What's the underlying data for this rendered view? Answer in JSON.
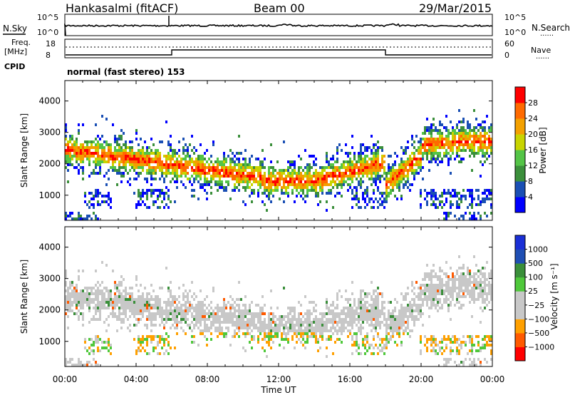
{
  "header": {
    "station": "Hankasalmi (fitACF)",
    "beam": "Beam 00",
    "date": "29/Mar/2015"
  },
  "panel_labels": {
    "nsky": "N.Sky",
    "nsearch": "N.Search",
    "freq": "Freq.",
    "freq_unit": "[MHz]",
    "cpid": "CPID",
    "nave": "Nave",
    "dots": "......",
    "mode": "normal (fast stereo) 153"
  },
  "noise_ticks": {
    "left": [
      "10^5",
      "10^0"
    ],
    "right": [
      "10^5",
      "10^0"
    ]
  },
  "freq_ticks": {
    "left": [
      "18",
      "8"
    ],
    "right": [
      "60",
      "0"
    ]
  },
  "colors": {
    "power": [
      "#0000ff",
      "#1a4fb4",
      "#3b8f3b",
      "#54c447",
      "#c8d400",
      "#f3a000",
      "#ff6a00",
      "#ff0000"
    ],
    "velocity": [
      "#ff0000",
      "#ff5a00",
      "#ffa000",
      "#c8c8c8",
      "#c8c8c8",
      "#4fc83b",
      "#3a8f3a",
      "#1f4fb4",
      "#1a2fd6"
    ]
  },
  "chart_data": [
    {
      "type": "heatmap",
      "ylabel": "Slant Range [km]",
      "xlabel": "Time UT",
      "x_ticks": [
        "00:00",
        "04:00",
        "08:00",
        "12:00",
        "16:00",
        "20:00",
        "00:00"
      ],
      "y_ticks": [
        1000,
        2000,
        3000,
        4000
      ],
      "ylim": [
        200,
        4650
      ],
      "colorbar": {
        "label": "Power [dB]",
        "ticks": [
          4,
          8,
          12,
          16,
          20,
          24,
          28
        ],
        "range": [
          0,
          32
        ]
      }
    },
    {
      "type": "heatmap",
      "ylabel": "Slant Range [km]",
      "xlabel": "Time UT",
      "x_ticks": [
        "00:00",
        "04:00",
        "08:00",
        "12:00",
        "16:00",
        "20:00",
        "00:00"
      ],
      "y_ticks": [
        1000,
        2000,
        3000,
        4000
      ],
      "ylim": [
        200,
        4650
      ],
      "colorbar": {
        "label": "Velocity [m s⁻¹]",
        "ticks": [
          "1000",
          "500",
          "100",
          "25",
          "−25",
          "−100",
          "−500",
          "−1000"
        ]
      }
    }
  ]
}
